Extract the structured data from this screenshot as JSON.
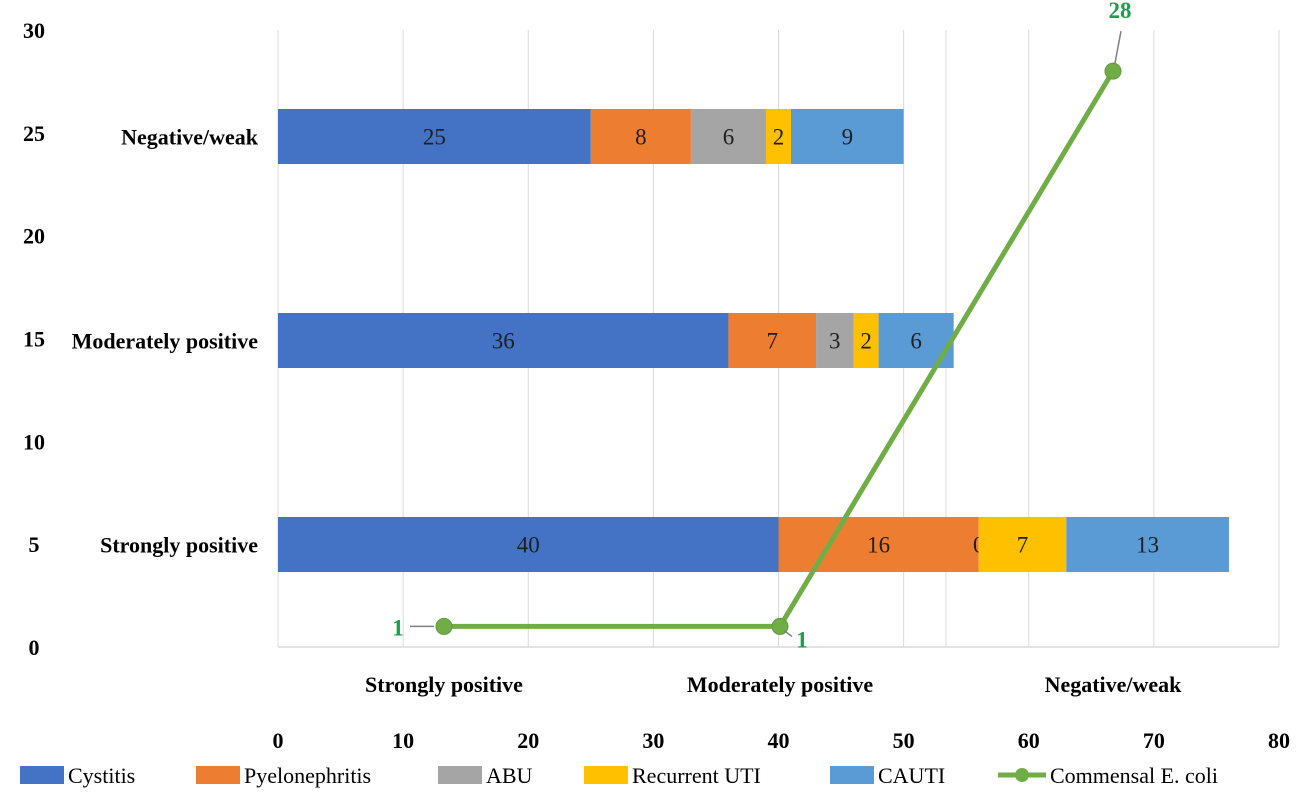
{
  "chart_data": {
    "type": "bar",
    "orientation": "horizontal",
    "stacked": true,
    "categories": [
      "Strongly positive",
      "Moderately positive",
      "Negative/weak"
    ],
    "series": [
      {
        "name": "Cystitis",
        "color": "#4472C4",
        "values": [
          40,
          36,
          25
        ]
      },
      {
        "name": "Pyelonephritis",
        "color": "#ED7D31",
        "values": [
          16,
          7,
          8
        ]
      },
      {
        "name": "ABU",
        "color": "#A5A5A5",
        "values": [
          0,
          3,
          6
        ]
      },
      {
        "name": "Recurrent UTI",
        "color": "#FFC000",
        "values": [
          7,
          2,
          2
        ]
      },
      {
        "name": "CAUTI",
        "color": "#5B9BD5",
        "values": [
          13,
          6,
          9
        ]
      }
    ],
    "bar_x_axis": {
      "min": 0,
      "max": 80,
      "ticks": [
        0,
        10,
        20,
        30,
        40,
        50,
        60,
        70,
        80
      ]
    },
    "line_series": {
      "name": "Commensal E. coli",
      "type": "line",
      "color": "#70AD47",
      "label_color": "#1aa04a",
      "categories": [
        "Strongly positive",
        "Moderately positive",
        "Negative/weak"
      ],
      "values": [
        1,
        1,
        28
      ]
    },
    "line_y_axis": {
      "min": 0,
      "max": 30,
      "ticks": [
        0,
        5,
        10,
        15,
        20,
        25,
        30
      ]
    },
    "grid": "vertical",
    "legend_position": "bottom"
  }
}
